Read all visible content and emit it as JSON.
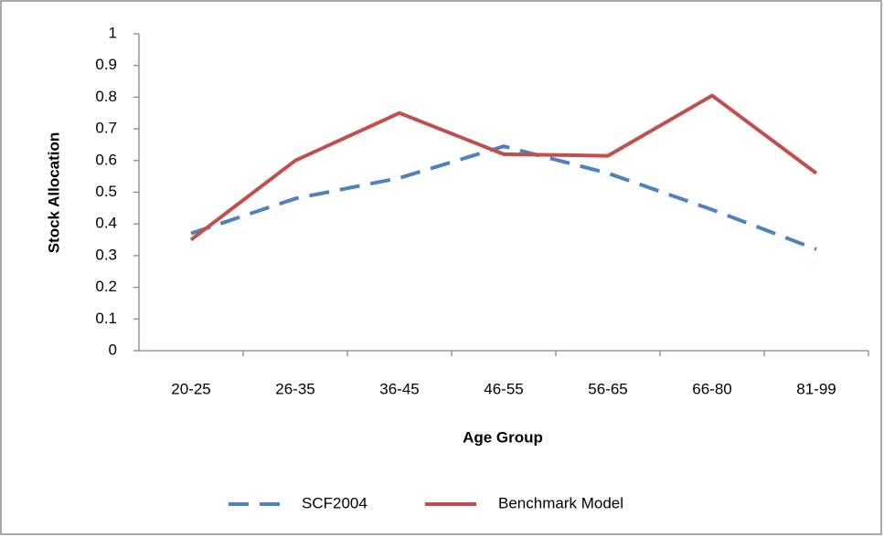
{
  "chart_data": {
    "type": "line",
    "xlabel": "Age Group",
    "ylabel": "Stock Allocation",
    "categories": [
      "20-25",
      "26-35",
      "36-45",
      "46-55",
      "56-65",
      "66-80",
      "81-99"
    ],
    "series": [
      {
        "name": "SCF2004",
        "color": "#4f81bd",
        "dashed": true,
        "values": [
          0.37,
          0.48,
          0.545,
          0.645,
          0.56,
          0.445,
          0.32
        ]
      },
      {
        "name": "Benchmark Model",
        "color": "#c0504d",
        "dashed": false,
        "values": [
          0.35,
          0.6,
          0.75,
          0.62,
          0.615,
          0.805,
          0.56
        ]
      }
    ],
    "ylim": [
      0,
      1
    ],
    "yticks": [
      0,
      0.1,
      0.2,
      0.3,
      0.4,
      0.5,
      0.6,
      0.7,
      0.8,
      0.9,
      1
    ],
    "grid": false,
    "legend": "bottom"
  }
}
